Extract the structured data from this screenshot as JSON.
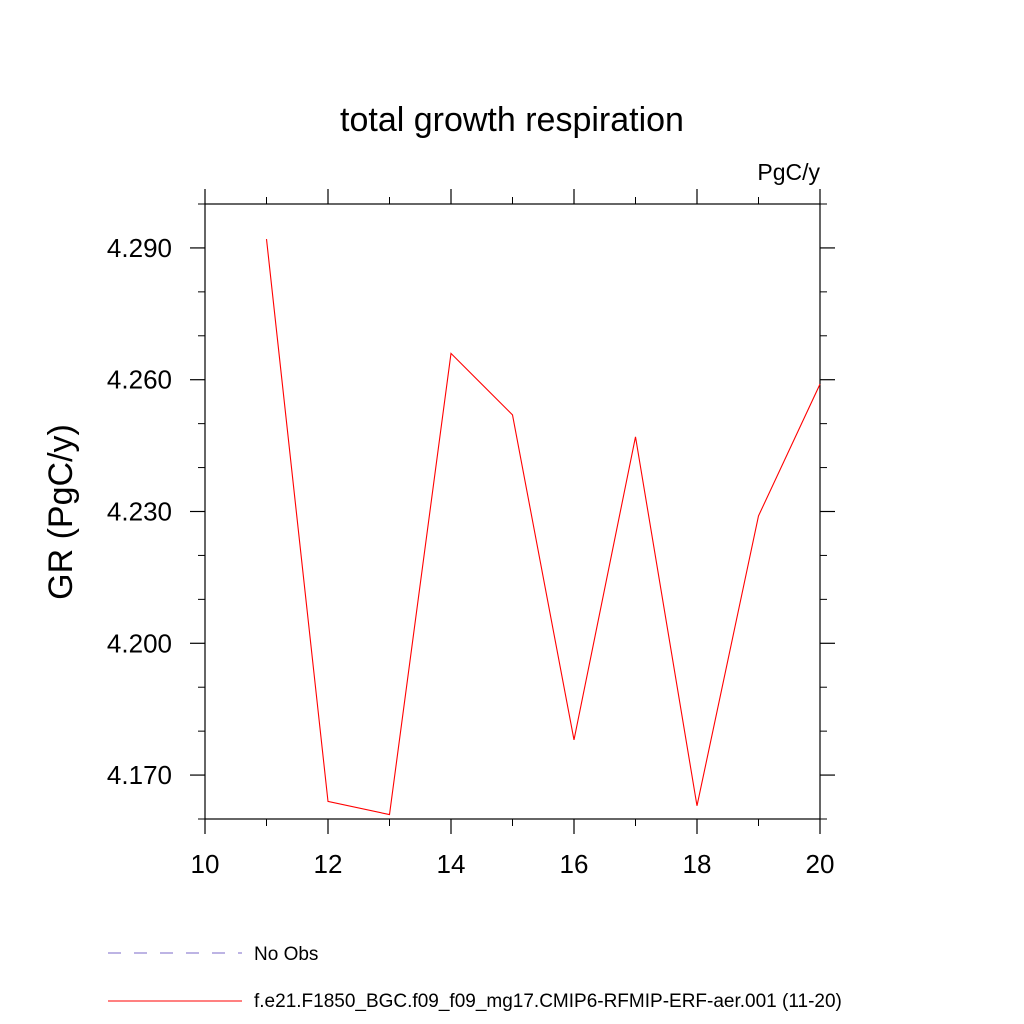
{
  "chart_data": {
    "type": "line",
    "title": "total growth respiration",
    "units_label": "PgC/y",
    "xlabel": "",
    "ylabel": "GR  (PgC/y)",
    "xlim": [
      10,
      20
    ],
    "ylim": [
      4.16,
      4.3
    ],
    "x_ticks": [
      10,
      12,
      14,
      16,
      18,
      20
    ],
    "x_tick_labels": [
      "10",
      "12",
      "14",
      "16",
      "18",
      "20"
    ],
    "y_ticks": [
      4.17,
      4.2,
      4.23,
      4.26,
      4.29
    ],
    "y_tick_labels": [
      "4.170",
      "4.200",
      "4.230",
      "4.260",
      "4.290"
    ],
    "y_minor_step": 0.01,
    "x_minor_step": 1,
    "series": [
      {
        "name": "f.e21.F1850_BGC.f09_f09_mg17.CMIP6-RFMIP-ERF-aer.001 (11-20)",
        "color": "#ff0000",
        "style": "solid",
        "x": [
          11,
          12,
          13,
          14,
          15,
          16,
          17,
          18,
          19,
          20
        ],
        "values": [
          4.292,
          4.164,
          4.161,
          4.266,
          4.252,
          4.178,
          4.247,
          4.163,
          4.229,
          4.259
        ]
      }
    ],
    "legend": [
      {
        "label": "No Obs",
        "color": "#7b68c8",
        "style": "dashed"
      },
      {
        "label": "f.e21.F1850_BGC.f09_f09_mg17.CMIP6-RFMIP-ERF-aer.001 (11-20)",
        "color": "#ff0000",
        "style": "solid"
      }
    ],
    "legend_position": "bottom-left"
  }
}
